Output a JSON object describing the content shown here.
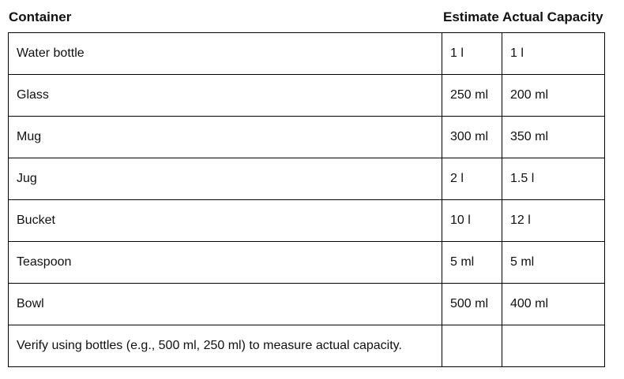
{
  "headers": {
    "container": "Container",
    "estimate": "Estimate",
    "actual_capacity": "Actual Capacity"
  },
  "rows": [
    {
      "container": "Water bottle",
      "estimate": "1 l",
      "actual": "1 l"
    },
    {
      "container": "Glass",
      "estimate": "250 ml",
      "actual": "200 ml"
    },
    {
      "container": "Mug",
      "estimate": "300 ml",
      "actual": "350 ml"
    },
    {
      "container": "Jug",
      "estimate": "2 l",
      "actual": "1.5 l"
    },
    {
      "container": "Bucket",
      "estimate": "10 l",
      "actual": "12 l"
    },
    {
      "container": "Teaspoon",
      "estimate": "5 ml",
      "actual": "5 ml"
    },
    {
      "container": "Bowl",
      "estimate": "500 ml",
      "actual": "400 ml"
    },
    {
      "container": "Verify using bottles (e.g., 500 ml, 250 ml) to measure actual capacity.",
      "estimate": "",
      "actual": ""
    }
  ]
}
